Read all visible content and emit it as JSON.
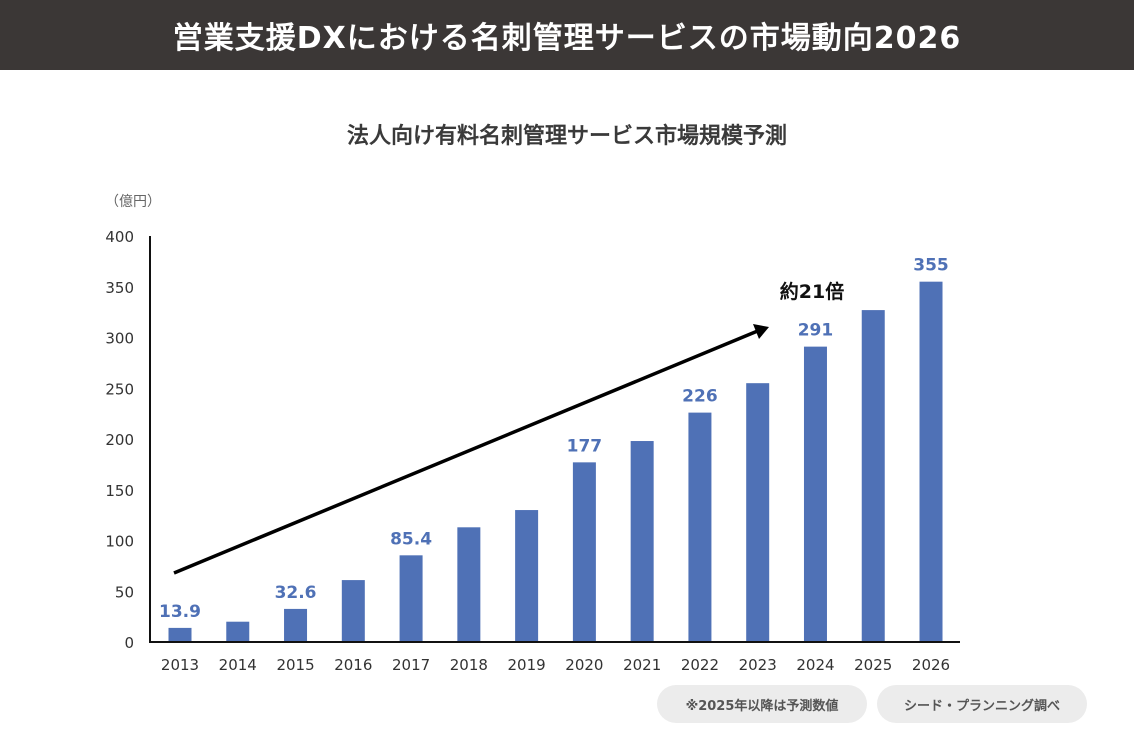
{
  "header": {
    "title": "営業支援DXにおける名刺管理サービスの市場動向2026"
  },
  "chart_data": {
    "type": "bar",
    "title": "法人向け有料名刺管理サービス市場規模予測",
    "ylabel": "（億円）",
    "xlabel": "",
    "ylim": [
      0,
      400
    ],
    "yticks": [
      "0",
      "50",
      "100",
      "150",
      "200",
      "250",
      "300",
      "350",
      "400"
    ],
    "categories": [
      "2013",
      "2014",
      "2015",
      "2016",
      "2017",
      "2018",
      "2019",
      "2020",
      "2021",
      "2022",
      "2023",
      "2024",
      "2025",
      "2026"
    ],
    "values": [
      13.9,
      20,
      32.6,
      61,
      85.4,
      113,
      130,
      177,
      198,
      226,
      255,
      291,
      327,
      355
    ],
    "data_labels": {
      "0": "13.9",
      "2": "32.6",
      "4": "85.4",
      "7": "177",
      "9": "226",
      "11": "291",
      "13": "355"
    },
    "bar_color": "#4f71b6",
    "label_color": "#4f71b6",
    "annotation": "約21倍",
    "grid": false
  },
  "notes": {
    "forecast": "※2025年以降は予測数値",
    "source": "シード・プランニング調べ"
  }
}
